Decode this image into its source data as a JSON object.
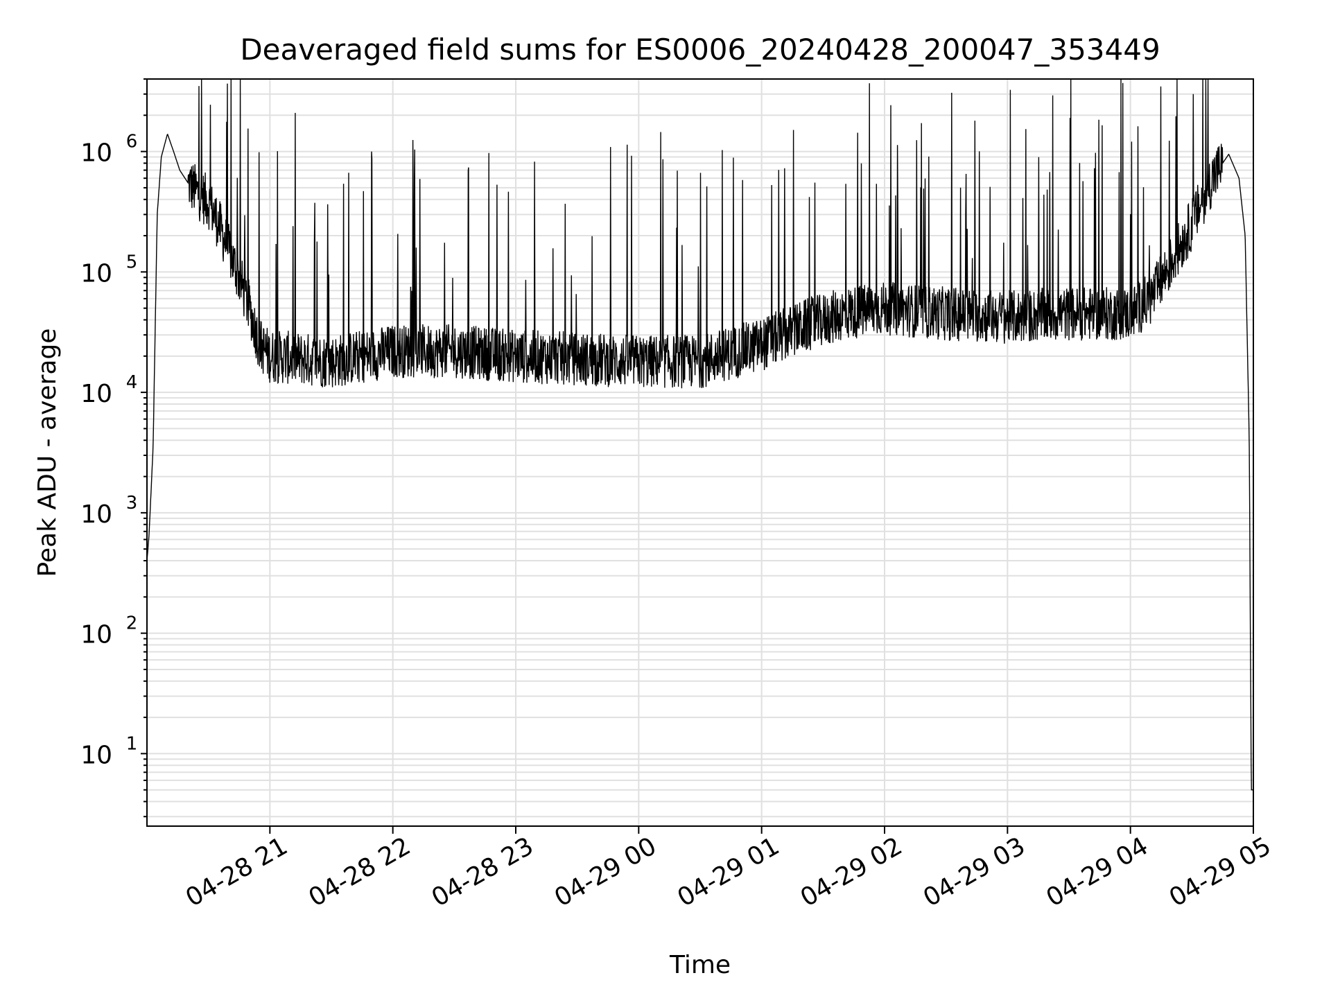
{
  "chart_data": {
    "type": "line",
    "title": "Deaveraged field sums for ES0006_20240428_200047_353449",
    "xlabel": "Time",
    "ylabel": "Peak ADU - average",
    "yscale": "log",
    "ylim": [
      2.5,
      4000000
    ],
    "xlim": [
      "2024-04-28 20:00:47",
      "2024-04-29 05:00:47"
    ],
    "x_ticks": [
      "04-28 21",
      "04-28 22",
      "04-28 23",
      "04-29 00",
      "04-29 01",
      "04-29 02",
      "04-29 03",
      "04-29 04",
      "04-29 05"
    ],
    "y_ticks": [
      {
        "base": "10",
        "exp": "1",
        "value": 10
      },
      {
        "base": "10",
        "exp": "2",
        "value": 100
      },
      {
        "base": "10",
        "exp": "3",
        "value": 1000
      },
      {
        "base": "10",
        "exp": "4",
        "value": 10000
      },
      {
        "base": "10",
        "exp": "5",
        "value": 100000
      },
      {
        "base": "10",
        "exp": "6",
        "value": 1000000
      }
    ],
    "grid": true,
    "line_color": "#000000",
    "series": [
      {
        "points": [
          [
            "04-28 20:00",
            400
          ],
          [
            "04-28 20:01",
            650
          ],
          [
            "04-28 20:03",
            3500
          ],
          [
            "04-28 20:05",
            300000
          ],
          [
            "04-28 20:07",
            900000
          ],
          [
            "04-28 20:10",
            1400000
          ],
          [
            "04-28 20:13",
            1000000
          ],
          [
            "04-28 20:16",
            700000
          ],
          [
            "04-28 20:20",
            550000
          ],
          [
            "04-28 20:25",
            450000
          ],
          [
            "04-28 20:30",
            380000
          ],
          [
            "04-28 20:35",
            250000
          ],
          [
            "04-28 20:40",
            150000
          ],
          [
            "04-28 20:45",
            90000
          ],
          [
            "04-28 20:50",
            50000
          ],
          [
            "04-28 20:55",
            25000
          ],
          [
            "04-28 21:00",
            20000
          ],
          [
            "04-28 21:30",
            18000
          ],
          [
            "04-28 22:00",
            22000
          ],
          [
            "04-28 22:30",
            22000
          ],
          [
            "04-28 23:00",
            20000
          ],
          [
            "04-28 23:30",
            19000
          ],
          [
            "04-29 00:00",
            18000
          ],
          [
            "04-29 00:30",
            18000
          ],
          [
            "04-29 01:00",
            25000
          ],
          [
            "04-29 01:20",
            35000
          ],
          [
            "04-29 01:40",
            45000
          ],
          [
            "04-29 02:00",
            50000
          ],
          [
            "04-29 02:30",
            45000
          ],
          [
            "04-29 03:00",
            42000
          ],
          [
            "04-29 03:30",
            45000
          ],
          [
            "04-29 04:00",
            45000
          ],
          [
            "04-29 04:10",
            60000
          ],
          [
            "04-29 04:20",
            120000
          ],
          [
            "04-29 04:30",
            250000
          ],
          [
            "04-29 04:40",
            600000
          ],
          [
            "04-29 04:48",
            950000
          ],
          [
            "04-29 04:53",
            600000
          ],
          [
            "04-29 04:56",
            200000
          ],
          [
            "04-29 04:58",
            4000
          ],
          [
            "04-29 04:59",
            5
          ],
          [
            "04-29 05:00",
            5
          ]
        ]
      }
    ]
  }
}
